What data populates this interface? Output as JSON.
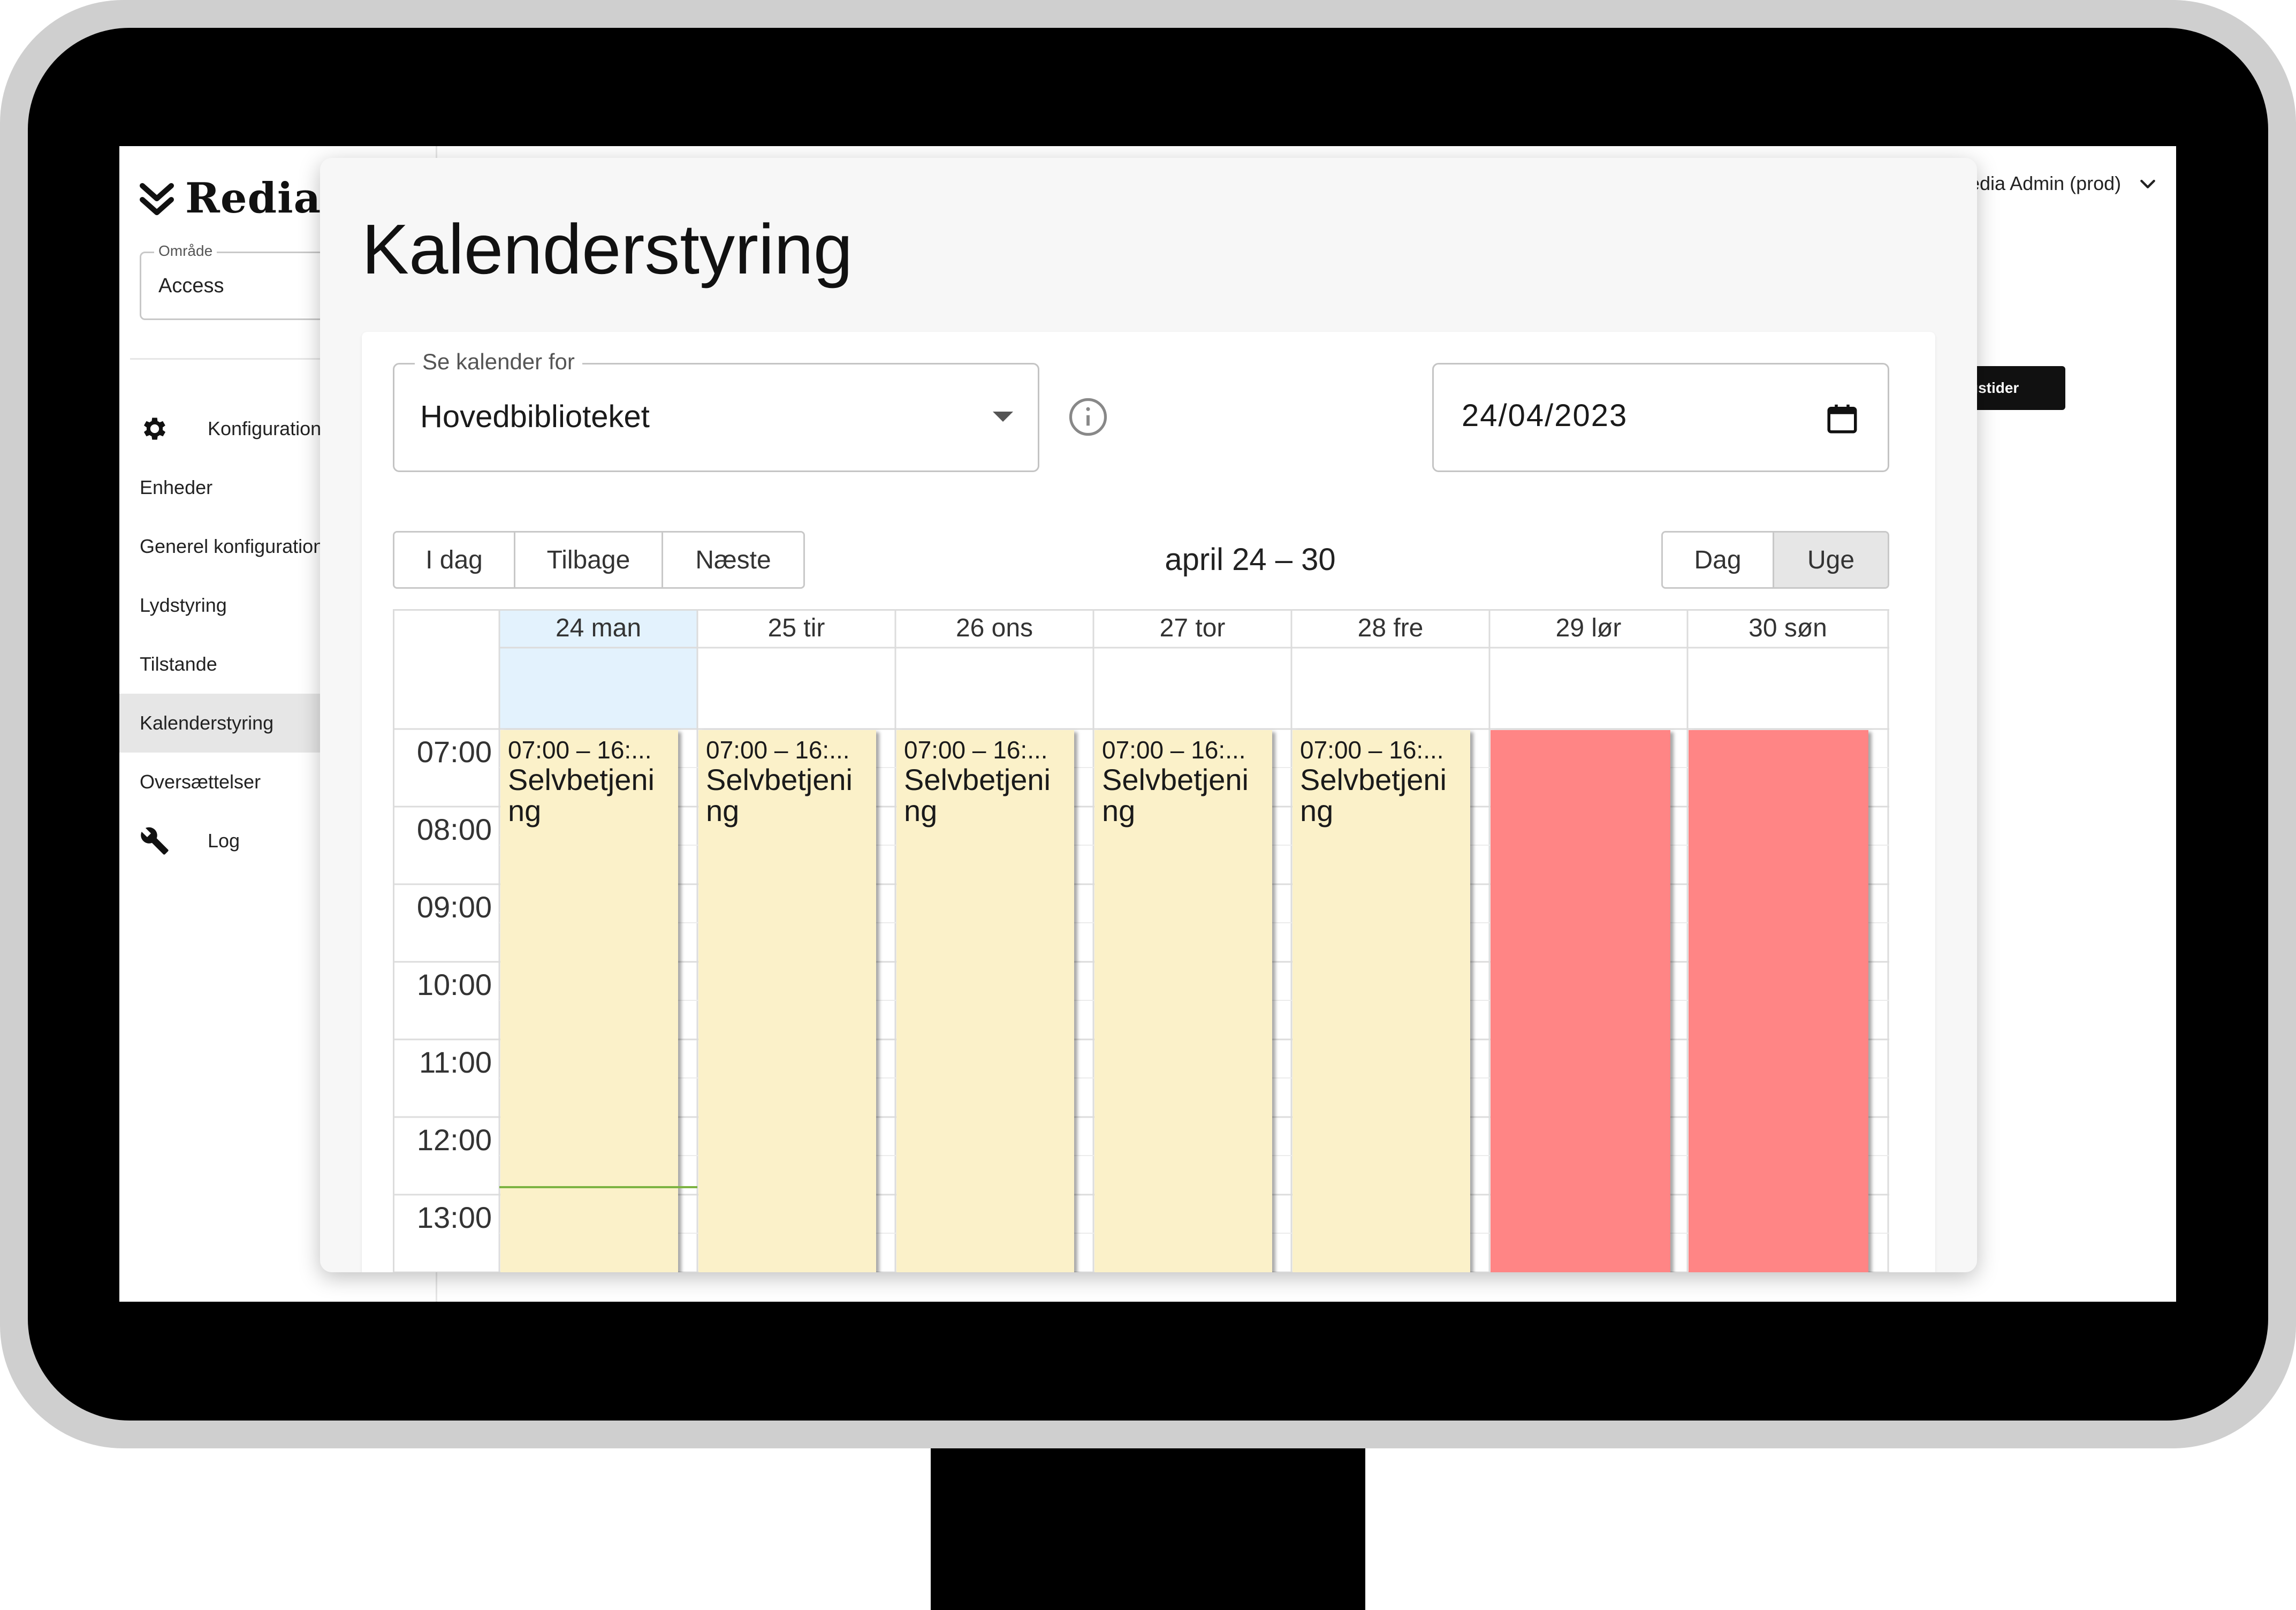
{
  "app": {
    "brand": "Redia",
    "area": {
      "label": "Område",
      "value": "Access"
    },
    "nav": [
      {
        "label": "Konfiguration",
        "icon": "gear-icon"
      },
      {
        "label": "Enheder"
      },
      {
        "label": "Generel konfiguration"
      },
      {
        "label": "Lydstyring"
      },
      {
        "label": "Tilstande"
      },
      {
        "label": "Kalenderstyring",
        "selected": true
      },
      {
        "label": "Oversættelser"
      },
      {
        "label": "Log",
        "icon": "wrench-icon"
      }
    ],
    "user": "Redia Admin (prod)",
    "action_button": "Åbningstider"
  },
  "modal": {
    "title": "Kalenderstyring",
    "calendar_select": {
      "label": "Se kalender for",
      "value": "Hovedbiblioteket"
    },
    "date": "24/04/2023",
    "nav_buttons": [
      "I dag",
      "Tilbage",
      "Næste"
    ],
    "range_title": "april 24 – 30",
    "view_buttons": [
      {
        "label": "Dag"
      },
      {
        "label": "Uge",
        "active": true
      }
    ],
    "days": [
      "24 man",
      "25 tir",
      "26 ons",
      "27 tor",
      "28 fre",
      "29 lør",
      "30 søn"
    ],
    "hours": [
      "07:00",
      "08:00",
      "09:00",
      "10:00",
      "11:00",
      "12:00",
      "13:00"
    ],
    "events": [
      {
        "day": 0,
        "time": "07:00 – 16:...",
        "title": "Selvbetjening"
      },
      {
        "day": 1,
        "time": "07:00 – 16:...",
        "title": "Selvbetjening"
      },
      {
        "day": 2,
        "time": "07:00 – 16:...",
        "title": "Selvbetjening"
      },
      {
        "day": 3,
        "time": "07:00 – 16:...",
        "title": "Selvbetjening"
      },
      {
        "day": 4,
        "time": "07:00 – 16:...",
        "title": "Selvbetjening"
      }
    ],
    "closed_days": [
      5,
      6
    ],
    "colors": {
      "event": "#fbf1c9",
      "closed": "#ff8585",
      "today": "#e3f2fd",
      "now_line": "#7cb342"
    }
  }
}
